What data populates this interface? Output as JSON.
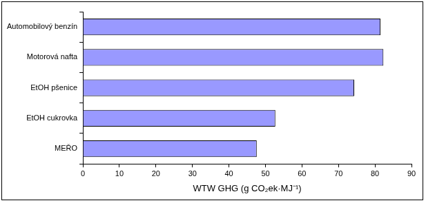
{
  "chart_data": {
    "type": "bar",
    "orientation": "horizontal",
    "categories": [
      "Automobilový benzín",
      "Motorová nafta",
      "EtOH pšenice",
      "EtOH cukrovka",
      "MEŘO"
    ],
    "values": [
      81.5,
      82.3,
      74.3,
      52.7,
      47.6
    ],
    "color": "#9999ff",
    "x_label": "WTW GHG (g CO₂ek·MJ⁻¹)",
    "xlim": [
      0,
      90
    ],
    "xticks": [
      0,
      10,
      20,
      30,
      40,
      50,
      60,
      70,
      80,
      90
    ],
    "grid": false
  }
}
